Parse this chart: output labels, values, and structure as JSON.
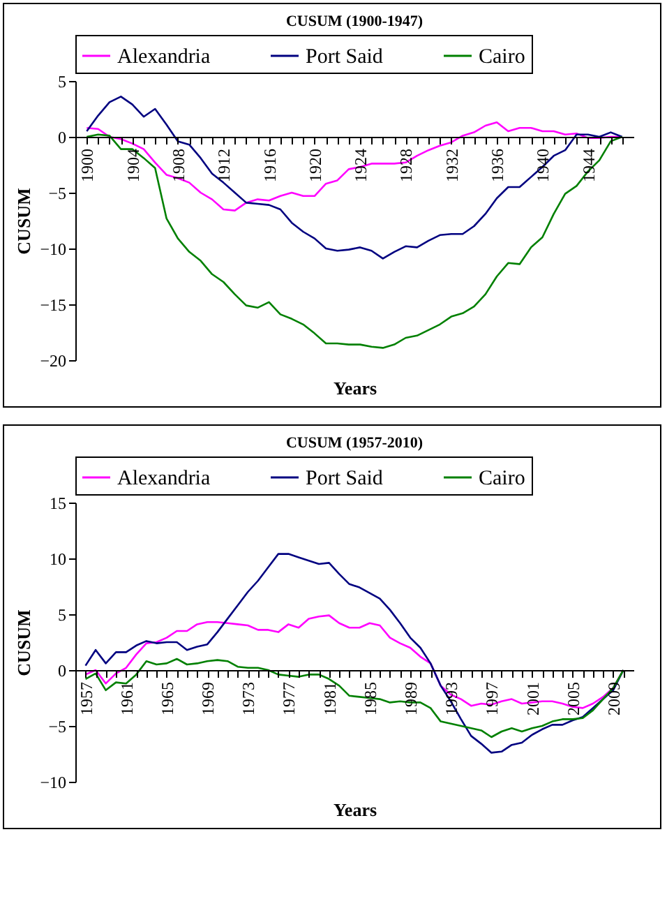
{
  "chart_data": [
    {
      "type": "line",
      "title": "CUSUM (1900-1947)",
      "xlabel": "Years",
      "ylabel": "CUSUM",
      "categories": [
        "1900",
        null,
        null,
        null,
        "1904",
        null,
        null,
        null,
        "1908",
        null,
        null,
        null,
        "1912",
        null,
        null,
        null,
        "1916",
        null,
        null,
        null,
        "1920",
        null,
        null,
        null,
        "1924",
        null,
        null,
        null,
        "1928",
        null,
        null,
        null,
        "1932",
        null,
        null,
        null,
        "1936",
        null,
        null,
        null,
        "1940",
        null,
        null,
        null,
        "1944",
        null,
        null,
        null
      ],
      "series": [
        {
          "name": "Alexandria",
          "color": "#ff00ff",
          "values": [
            0.8,
            0.7,
            0.0,
            -0.2,
            -0.6,
            -1.1,
            -2.3,
            -3.4,
            -3.7,
            -4.1,
            -5.0,
            -5.6,
            -6.5,
            -6.6,
            -5.9,
            -5.6,
            -5.7,
            -5.3,
            -5.0,
            -5.3,
            -5.3,
            -4.2,
            -3.9,
            -2.9,
            -2.7,
            -2.4,
            -2.4,
            -2.4,
            -2.3,
            -1.7,
            -1.2,
            -0.8,
            -0.5,
            0.1,
            0.4,
            1.0,
            1.3,
            0.5,
            0.8,
            0.8,
            0.5,
            0.5,
            0.2,
            0.3,
            -0.1,
            -0.1,
            0.0,
            0.0
          ]
        },
        {
          "name": "Port Said",
          "color": "#000080",
          "values": [
            0.5,
            1.9,
            3.1,
            3.6,
            2.9,
            1.8,
            2.5,
            1.1,
            -0.4,
            -0.7,
            -1.9,
            -3.3,
            -4.1,
            -5.0,
            -5.9,
            -6.0,
            -6.1,
            -6.5,
            -7.7,
            -8.5,
            -9.1,
            -10.0,
            -10.2,
            -10.1,
            -9.9,
            -10.2,
            -10.9,
            -10.3,
            -9.8,
            -9.9,
            -9.3,
            -8.8,
            -8.7,
            -8.7,
            -8.0,
            -6.9,
            -5.5,
            -4.5,
            -4.5,
            -3.6,
            -2.7,
            -1.7,
            -1.2,
            0.2,
            0.2,
            0.0,
            0.4,
            0.0
          ]
        },
        {
          "name": "Cairo",
          "color": "#008000",
          "values": [
            0.0,
            0.2,
            0.1,
            -1.1,
            -1.1,
            -1.9,
            -2.8,
            -7.3,
            -9.1,
            -10.3,
            -11.1,
            -12.3,
            -13.0,
            -14.1,
            -15.1,
            -15.3,
            -14.8,
            -15.9,
            -16.3,
            -16.8,
            -17.6,
            -18.5,
            -18.5,
            -18.6,
            -18.6,
            -18.8,
            -18.9,
            -18.6,
            -18.0,
            -17.8,
            -17.3,
            -16.8,
            -16.1,
            -15.8,
            -15.2,
            -14.1,
            -12.5,
            -11.3,
            -11.4,
            -9.9,
            -9.0,
            -6.9,
            -5.1,
            -4.4,
            -3.1,
            -2.1,
            -0.4,
            0.0
          ]
        }
      ],
      "ylim": [
        -20,
        5
      ],
      "yticks": [
        -20,
        -15,
        -10,
        -5,
        0,
        5
      ],
      "legend": "top"
    },
    {
      "type": "line",
      "title": "CUSUM (1957-2010)",
      "xlabel": "Years",
      "ylabel": "CUSUM",
      "categories": [
        "1957",
        null,
        null,
        null,
        "1961",
        null,
        null,
        null,
        "1965",
        null,
        null,
        null,
        "1969",
        null,
        null,
        null,
        "1973",
        null,
        null,
        null,
        "1977",
        null,
        null,
        null,
        "1981",
        null,
        null,
        null,
        "1985",
        null,
        null,
        null,
        "1989",
        null,
        null,
        null,
        "1993",
        null,
        null,
        null,
        "1997",
        null,
        null,
        null,
        "2001",
        null,
        null,
        null,
        "2005",
        null,
        null,
        null,
        "2009",
        null
      ],
      "series": [
        {
          "name": "Alexandria",
          "color": "#ff00ff",
          "values": [
            -0.4,
            0.0,
            -1.2,
            -0.3,
            0.2,
            1.4,
            2.4,
            2.5,
            2.9,
            3.5,
            3.5,
            4.1,
            4.3,
            4.3,
            4.2,
            4.1,
            4.0,
            3.6,
            3.6,
            3.4,
            4.1,
            3.8,
            4.6,
            4.8,
            4.9,
            4.2,
            3.8,
            3.8,
            4.2,
            4.0,
            2.9,
            2.4,
            2.0,
            1.2,
            0.6,
            -1.4,
            -2.2,
            -2.6,
            -3.2,
            -3.0,
            -3.1,
            -2.8,
            -2.6,
            -3.0,
            -2.9,
            -2.8,
            -2.8,
            -3.0,
            -3.3,
            -3.4,
            -3.0,
            -2.4,
            -1.6,
            0.0
          ]
        },
        {
          "name": "Port Said",
          "color": "#000080",
          "values": [
            0.4,
            1.8,
            0.6,
            1.6,
            1.6,
            2.2,
            2.6,
            2.4,
            2.5,
            2.5,
            1.8,
            2.1,
            2.3,
            3.4,
            4.6,
            5.8,
            7.0,
            8.0,
            9.2,
            10.4,
            10.4,
            10.1,
            9.8,
            9.5,
            9.6,
            8.6,
            7.7,
            7.4,
            6.9,
            6.4,
            5.4,
            4.2,
            2.9,
            2.0,
            0.6,
            -1.4,
            -2.8,
            -4.4,
            -5.9,
            -6.6,
            -7.4,
            -7.3,
            -6.7,
            -6.5,
            -5.8,
            -5.3,
            -4.9,
            -4.9,
            -4.5,
            -4.2,
            -3.4,
            -2.6,
            -1.8,
            0.0
          ]
        },
        {
          "name": "Cairo",
          "color": "#008000",
          "values": [
            -0.8,
            -0.3,
            -1.8,
            -1.1,
            -1.2,
            -0.4,
            0.8,
            0.5,
            0.6,
            1.0,
            0.5,
            0.6,
            0.8,
            0.9,
            0.8,
            0.3,
            0.2,
            0.2,
            0.0,
            -0.4,
            -0.5,
            -0.6,
            -0.4,
            -0.4,
            -0.8,
            -1.4,
            -2.3,
            -2.4,
            -2.5,
            -2.6,
            -2.9,
            -2.8,
            -2.9,
            -2.9,
            -3.4,
            -4.6,
            -4.8,
            -5.0,
            -5.2,
            -5.4,
            -6.0,
            -5.5,
            -5.2,
            -5.5,
            -5.2,
            -5.0,
            -4.6,
            -4.4,
            -4.4,
            -4.3,
            -3.6,
            -2.6,
            -1.6,
            0.0
          ]
        }
      ],
      "ylim": [
        -10,
        15
      ],
      "yticks": [
        -10,
        -5,
        0,
        5,
        10,
        15
      ],
      "legend": "top"
    }
  ]
}
